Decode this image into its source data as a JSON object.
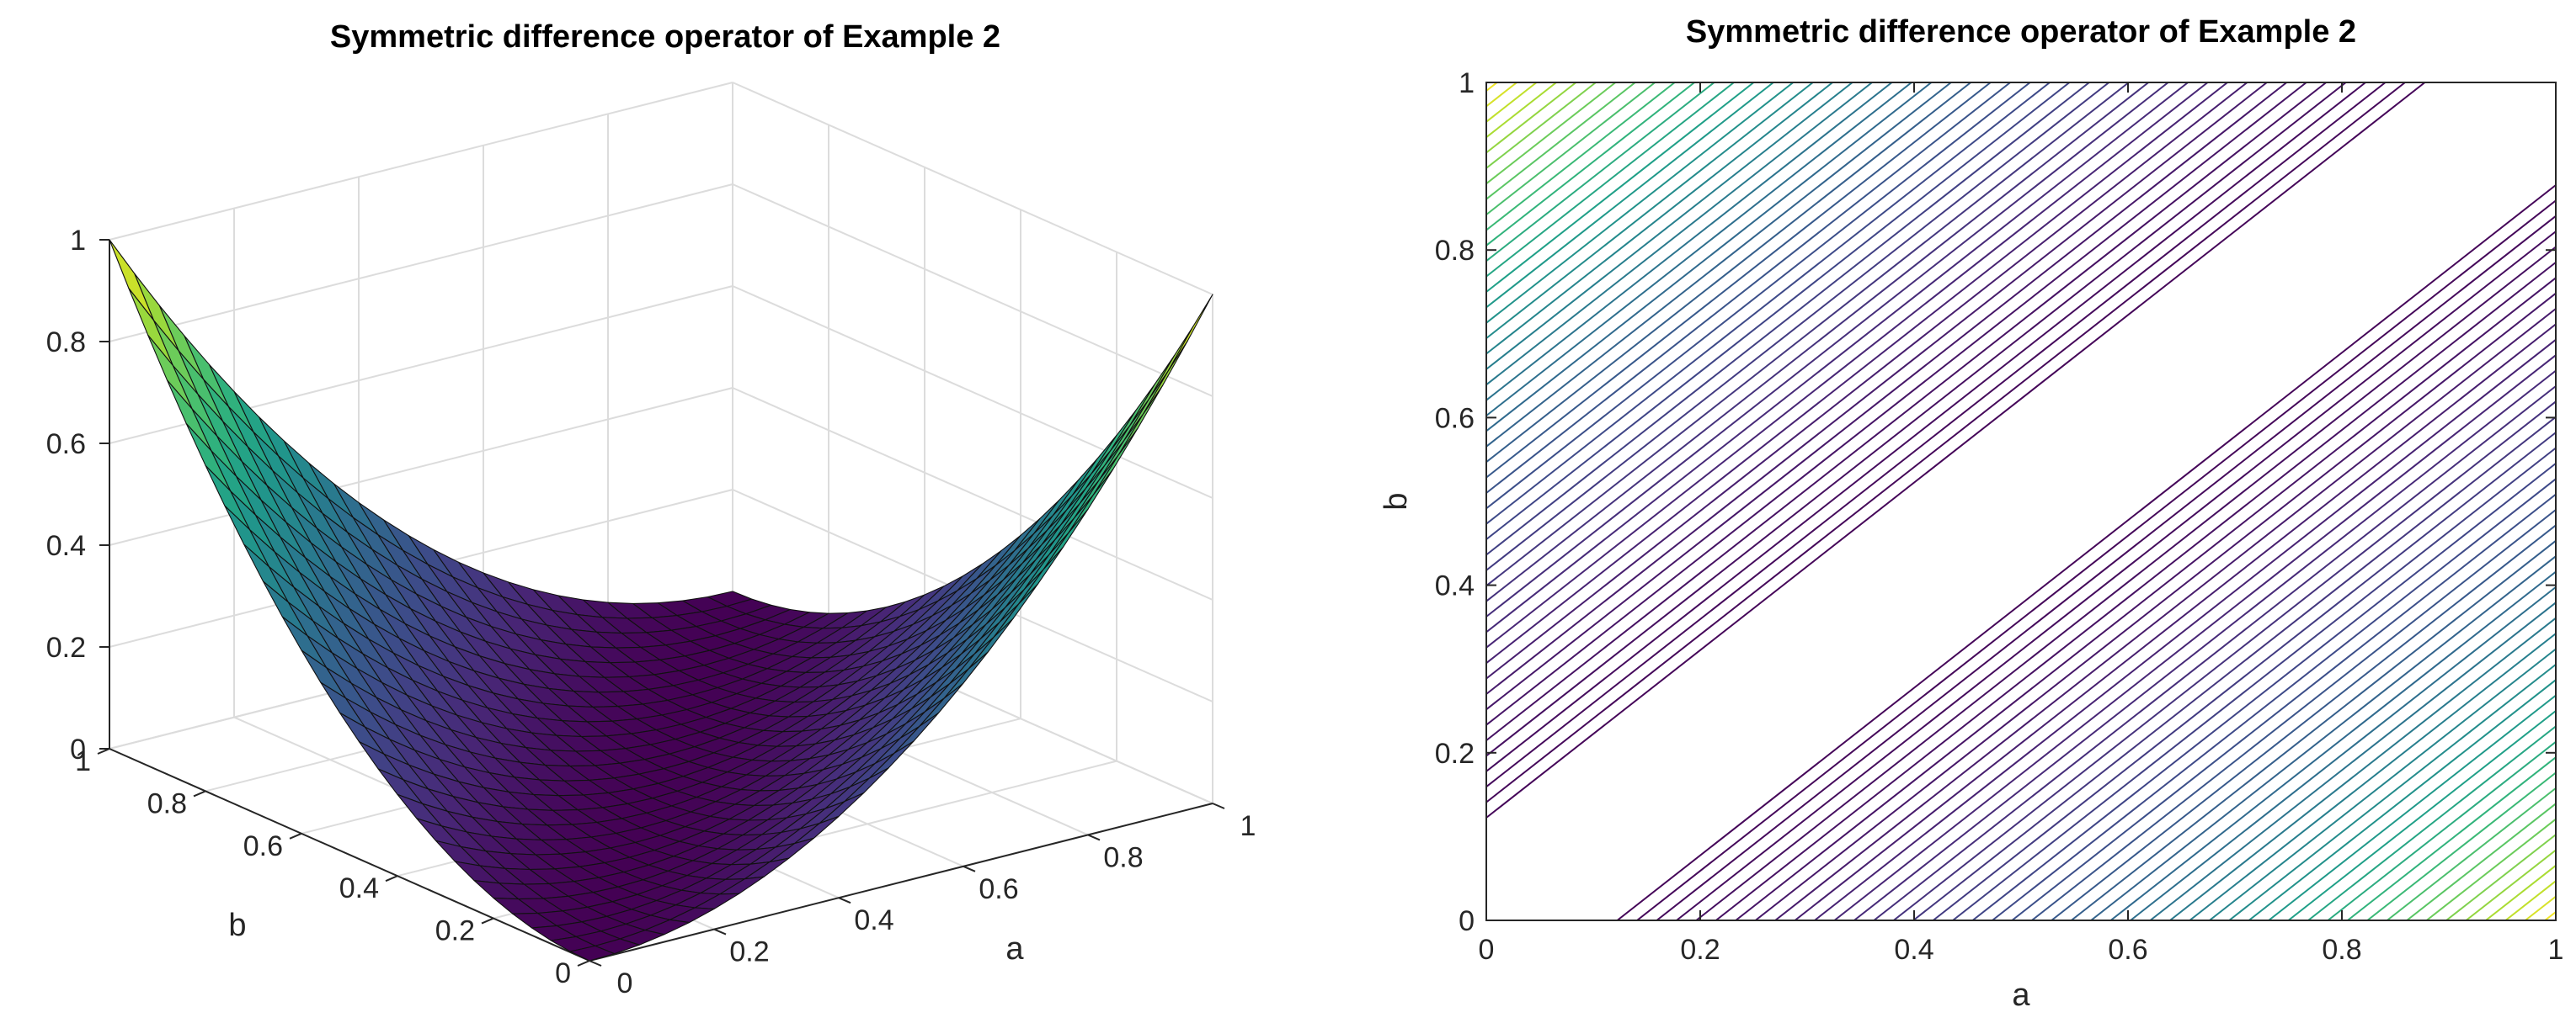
{
  "chart_data": [
    {
      "type": "surface",
      "title": "Symmetric difference operator of Example 2",
      "xlabel": "a",
      "ylabel": "b",
      "zlabel": "",
      "xlim": [
        0,
        1
      ],
      "ylim": [
        0,
        1
      ],
      "zlim": [
        0,
        1
      ],
      "x_ticks": [
        "0",
        "0.2",
        "0.4",
        "0.6",
        "0.8",
        "1"
      ],
      "y_ticks": [
        "0",
        "0.2",
        "0.4",
        "0.6",
        "0.8",
        "1"
      ],
      "z_ticks": [
        "0",
        "0.2",
        "0.4",
        "0.6",
        "0.8",
        "1"
      ],
      "grid_points": 26,
      "function": "z = (a - b)^2",
      "corner_values": [
        {
          "a": 0,
          "b": 0,
          "z": 0
        },
        {
          "a": 1,
          "b": 0,
          "z": 1
        },
        {
          "a": 0,
          "b": 1,
          "z": 1
        },
        {
          "a": 1,
          "b": 1,
          "z": 0
        }
      ],
      "colormap": "viridis",
      "grid": true
    },
    {
      "type": "contour",
      "title": "Symmetric difference operator of Example 2",
      "xlabel": "a",
      "ylabel": "b",
      "xlim": [
        0,
        1
      ],
      "ylim": [
        0,
        1
      ],
      "x_ticks": [
        "0",
        "0.2",
        "0.4",
        "0.6",
        "0.8",
        "1"
      ],
      "y_ticks": [
        "0",
        "0.2",
        "0.4",
        "0.6",
        "0.8",
        "1"
      ],
      "function": "z = (a - b)^2",
      "level_count": 48,
      "level_range": [
        0.015,
        0.98
      ],
      "colormap": "viridis",
      "grid": false
    }
  ]
}
